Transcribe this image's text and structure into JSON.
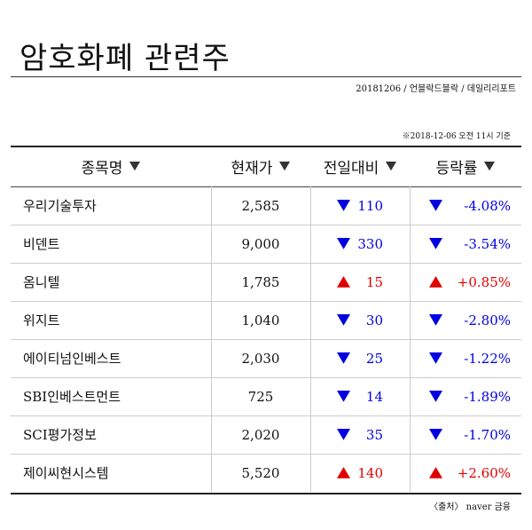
{
  "header": {
    "title": "암호화폐 관련주",
    "subtitle": "20181206 / 언블락드블락 / 데일리리포트",
    "note": "※2018-12-06 오전 11시 기준"
  },
  "table": {
    "columns": [
      "종목명",
      "현재가",
      "전일대비",
      "등락률"
    ],
    "rows": [
      [
        "우리기술투자",
        "2,585",
        "110",
        "-4.08%"
      ],
      [
        "비덴트",
        "9,000",
        "330",
        "-3.54%"
      ],
      [
        "옴니텔",
        "1,785",
        "15",
        "+0.85%"
      ],
      [
        "위지트",
        "1,040",
        "30",
        "-2.80%"
      ],
      [
        "에이티넘인베스트",
        "2,030",
        "25",
        "-1.22%"
      ],
      [
        "SBI인베스트먼트",
        "725",
        "14",
        "-1.89%"
      ],
      [
        "SCI평가정보",
        "2,020",
        "35",
        "-1.70%"
      ],
      [
        "제이씨현시스템",
        "5,520",
        "140",
        "+2.60%"
      ]
    ]
  },
  "footer": {
    "source": "〈출처〉 naver 금융"
  }
}
